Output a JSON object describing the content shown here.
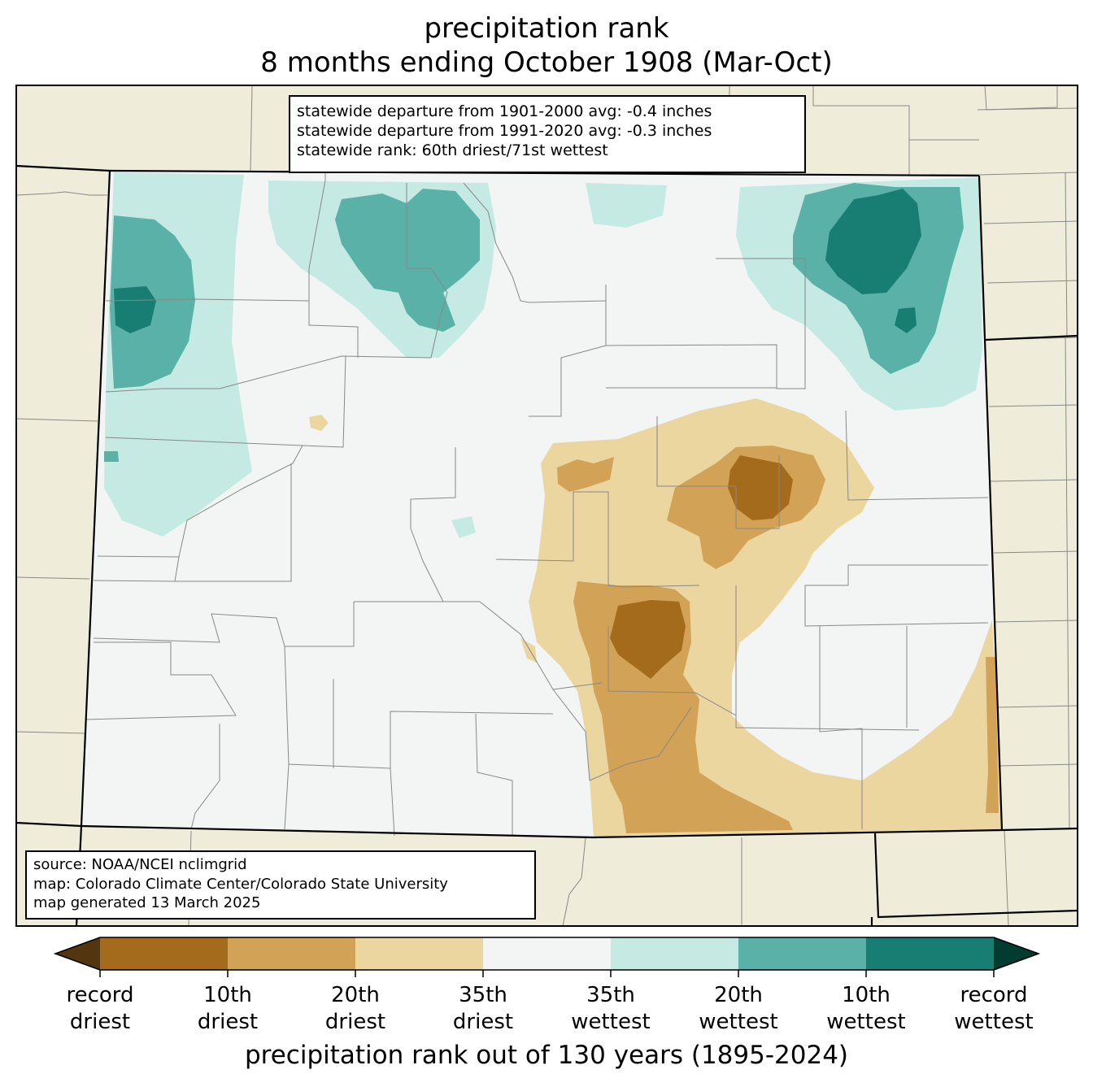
{
  "title": {
    "line1": "precipitation rank",
    "line2": "8 months ending October 1908 (Mar-Oct)"
  },
  "stats_box": {
    "line1": "statewide departure from 1901-2000 avg: -0.4 inches",
    "line2": "statewide departure from 1991-2020 avg: -0.3 inches",
    "line3": "statewide rank: 60th driest/71st wettest"
  },
  "source_box": {
    "line1": "source: NOAA/NCEI nclimgrid",
    "line2": "map: Colorado Climate Center/Colorado State University",
    "line3": "map generated 13 March 2025"
  },
  "colorbar": {
    "label": "precipitation rank out of 130 years (1895-2024)",
    "ticks": [
      {
        "l1": "record",
        "l2": "driest"
      },
      {
        "l1": "10th",
        "l2": "driest"
      },
      {
        "l1": "20th",
        "l2": "driest"
      },
      {
        "l1": "35th",
        "l2": "driest"
      },
      {
        "l1": "35th",
        "l2": "wettest"
      },
      {
        "l1": "20th",
        "l2": "wettest"
      },
      {
        "l1": "10th",
        "l2": "wettest"
      },
      {
        "l1": "record",
        "l2": "wettest"
      }
    ],
    "colors": [
      "#a56b1c",
      "#d2a256",
      "#ecd6a0",
      "#f3f5f5",
      "#c5e9e3",
      "#5ab1a7",
      "#187d73"
    ],
    "extend_low": "#533610",
    "extend_high": "#003c30"
  },
  "map_colors": {
    "outside": "#efedda",
    "record_driest_to_10th": "#a56b1c",
    "10th_to_20th_driest": "#d2a256",
    "20th_to_35th_driest": "#ecd6a0",
    "near_normal": "#f3f5f5",
    "35th_to_20th_wettest": "#c5e9e3",
    "20th_to_10th_wettest": "#5ab1a7",
    "10th_to_record_wettest": "#187d73"
  }
}
